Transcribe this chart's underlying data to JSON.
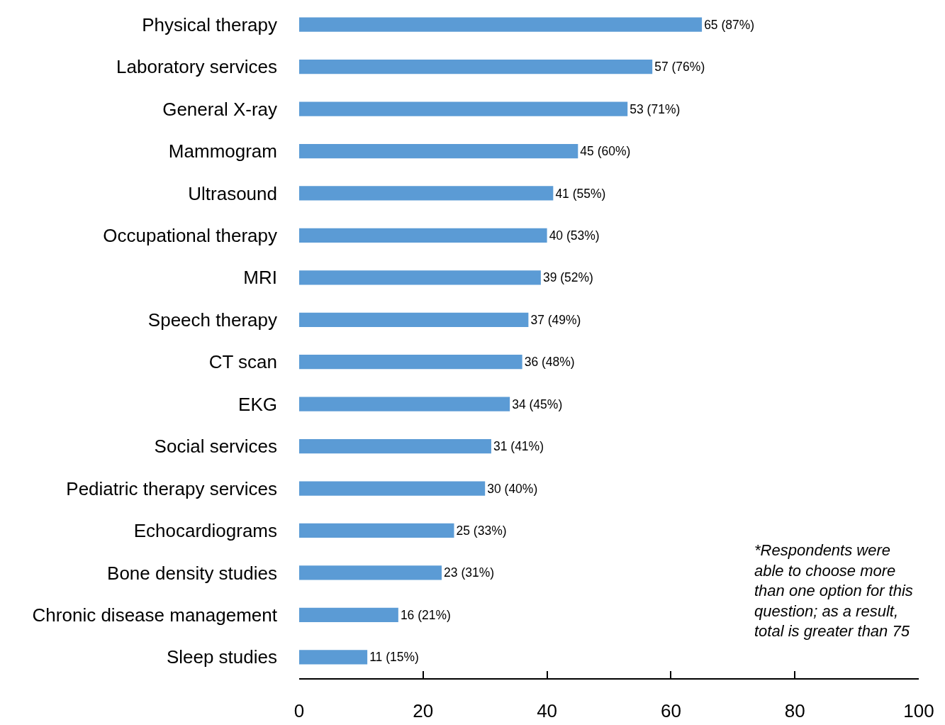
{
  "chart_data": {
    "type": "bar",
    "orientation": "horizontal",
    "categories": [
      "Physical therapy",
      "Laboratory services",
      "General X-ray",
      "Mammogram",
      "Ultrasound",
      "Occupational therapy",
      "MRI",
      "Speech therapy",
      "CT scan",
      "EKG",
      "Social services",
      "Pediatric therapy services",
      "Echocardiograms",
      "Bone density studies",
      "Chronic disease management",
      "Sleep studies"
    ],
    "values": [
      65,
      57,
      53,
      45,
      41,
      40,
      39,
      37,
      36,
      34,
      31,
      30,
      25,
      23,
      16,
      11
    ],
    "value_labels": [
      "65 (87%)",
      "57 (76%)",
      "53 (71%)",
      "45 (60%)",
      "41 (55%)",
      "40 (53%)",
      "39 (52%)",
      "37 (49%)",
      "36 (48%)",
      "34 (45%)",
      "31 (41%)",
      "30 (40%)",
      "25 (33%)",
      "23 (31%)",
      "16 (21%)",
      "11 (15%)"
    ],
    "color": "#5b9bd5",
    "xlim": [
      0,
      100
    ],
    "xticks": [
      0,
      20,
      40,
      60,
      80,
      100
    ],
    "annotations": [
      "*Respondents were\nable to choose more\nthan one option for this\nquestion; as a result,\ntotal is greater than 75"
    ]
  }
}
